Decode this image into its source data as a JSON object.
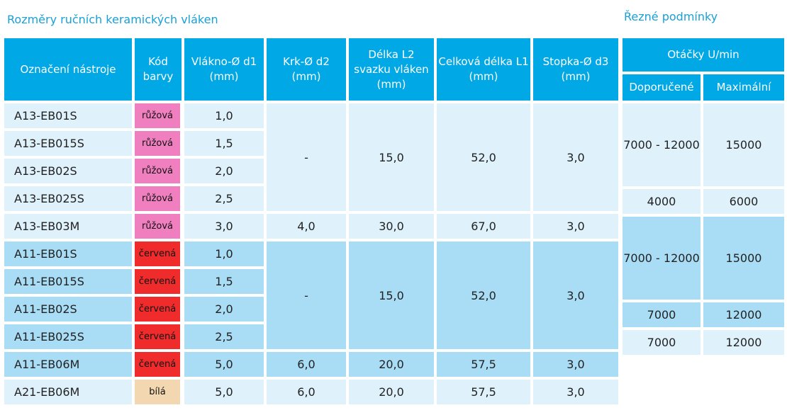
{
  "caption_left": "Rozměry ručních keramických vláken",
  "caption_right": "Řezné podmínky",
  "headers": {
    "designation": "Označení nástroje",
    "color_code": "Kód barvy",
    "fiber_d1": "Vlákno-Ø d1 (mm)",
    "neck_d2": "Krk-Ø d2 (mm)",
    "length_l2": "Délka L2 svazku vláken (mm)",
    "total_l1": "Celková délka L1 (mm)",
    "shank_d3": "Stopka-Ø d3 (mm)",
    "speed": "Otáčky U/min",
    "recommended": "Doporučené",
    "maximum": "Maximální"
  },
  "rows": [
    {
      "code": "A13-EB01S",
      "color": "růžová",
      "d1": "1,0"
    },
    {
      "code": "A13-EB015S",
      "color": "růžová",
      "d1": "1,5"
    },
    {
      "code": "A13-EB02S",
      "color": "růžová",
      "d1": "2,0"
    },
    {
      "code": "A13-EB025S",
      "color": "růžová",
      "d1": "2,5"
    },
    {
      "code": "A13-EB03M",
      "color": "růžová",
      "d1": "3,0",
      "d2": "4,0",
      "l2": "30,0",
      "l1": "67,0",
      "d3": "3,0",
      "rec": "4000",
      "max": "6000"
    },
    {
      "code": "A11-EB01S",
      "color": "červená",
      "d1": "1,0"
    },
    {
      "code": "A11-EB015S",
      "color": "červená",
      "d1": "1,5"
    },
    {
      "code": "A11-EB02S",
      "color": "červená",
      "d1": "2,0"
    },
    {
      "code": "A11-EB025S",
      "color": "červená",
      "d1": "2,5"
    },
    {
      "code": "A11-EB06M",
      "color": "červená",
      "d1": "5,0",
      "d2": "6,0",
      "l2": "20,0",
      "l1": "57,5",
      "d3": "3,0",
      "rec": "7000",
      "max": "12000"
    },
    {
      "code": "A21-EB06M",
      "color": "bílá",
      "d1": "5,0",
      "d2": "6,0",
      "l2": "20,0",
      "l1": "57,5",
      "d3": "3,0",
      "rec": "7000",
      "max": "12000"
    }
  ],
  "groups": [
    {
      "d2": "-",
      "l2": "15,0",
      "l1": "52,0",
      "d3": "3,0",
      "rec": "7000 - 12000",
      "max": "15000"
    },
    {
      "d2": "-",
      "l2": "15,0",
      "l1": "52,0",
      "d3": "3,0",
      "rec": "7000 - 12000",
      "max": "15000"
    }
  ],
  "colors": {
    "header_bg": "#00a8e6",
    "caption": "#1aa0d8",
    "row_light": "#dff1fb",
    "row_dark": "#a9dcf5",
    "pink": "#f07fbf",
    "red": "#ef2b2b",
    "beige": "#f3d7b0"
  }
}
